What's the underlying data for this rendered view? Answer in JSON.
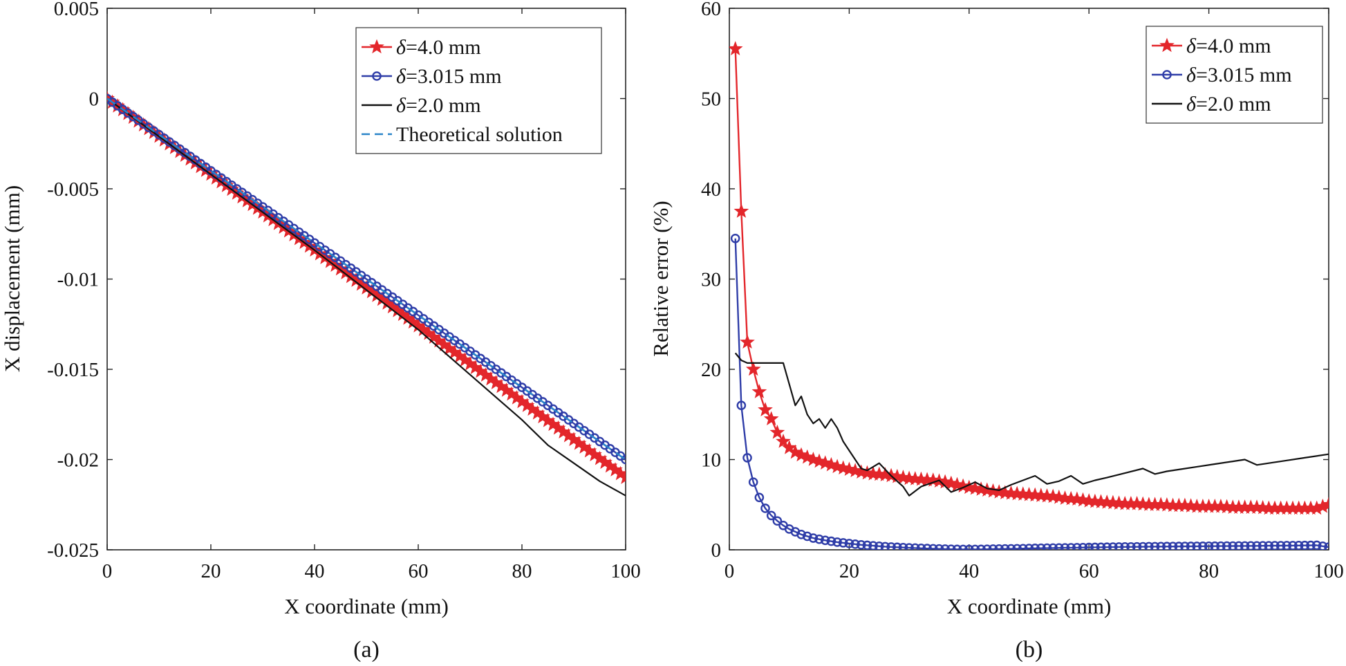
{
  "chart_data": [
    {
      "type": "line",
      "panel_label": "(a)",
      "xlabel": "X coordinate (mm)",
      "ylabel": "X displacement (mm)",
      "xlim": [
        0,
        100
      ],
      "ylim": [
        -0.025,
        0.005
      ],
      "xticks": [
        0,
        20,
        40,
        60,
        80,
        100
      ],
      "xtick_labels": [
        "0",
        "20",
        "40",
        "60",
        "80",
        "100"
      ],
      "yticks": [
        0.005,
        0,
        -0.005,
        -0.01,
        -0.015,
        -0.02,
        -0.025
      ],
      "ytick_labels": [
        "0.005",
        "0",
        "-0.005",
        "-0.01",
        "-0.015",
        "-0.02",
        "-0.025"
      ],
      "grid": false,
      "legend_position": "top-right",
      "colors": {
        "delta4": "#e3262b",
        "delta3": "#2f3da8",
        "delta2": "#111111",
        "theory": "#2a84c8"
      },
      "series": [
        {
          "name": "δ=4.0 mm",
          "color": "#e3262b",
          "marker": "star",
          "x": [
            0,
            10,
            20,
            30,
            40,
            50,
            60,
            70,
            80,
            90,
            100
          ],
          "y": [
            0,
            -0.0021,
            -0.0042,
            -0.0063,
            -0.0084,
            -0.0105,
            -0.0126,
            -0.0147,
            -0.0168,
            -0.0189,
            -0.021
          ]
        },
        {
          "name": "δ=3.015 mm",
          "color": "#2f3da8",
          "marker": "circle",
          "x": [
            0,
            10,
            20,
            30,
            40,
            50,
            60,
            70,
            80,
            90,
            100
          ],
          "y": [
            0,
            -0.002,
            -0.004,
            -0.006,
            -0.008,
            -0.01,
            -0.012,
            -0.014,
            -0.016,
            -0.018,
            -0.02
          ]
        },
        {
          "name": "δ=2.0 mm",
          "color": "#111111",
          "marker": "none",
          "x": [
            0,
            10,
            20,
            30,
            40,
            50,
            60,
            70,
            80,
            85,
            90,
            95,
            100
          ],
          "y": [
            0,
            -0.0021,
            -0.0042,
            -0.0063,
            -0.0084,
            -0.0106,
            -0.0128,
            -0.0153,
            -0.0178,
            -0.0192,
            -0.0202,
            -0.0212,
            -0.022
          ]
        },
        {
          "name": "Theoretical solution",
          "color": "#2a84c8",
          "marker": "none",
          "dashed": true,
          "x": [
            0,
            100
          ],
          "y": [
            0,
            -0.02
          ]
        }
      ]
    },
    {
      "type": "line",
      "panel_label": "(b)",
      "xlabel": "X coordinate (mm)",
      "ylabel": "Relative error (%)",
      "xlim": [
        0,
        100
      ],
      "ylim": [
        0,
        60
      ],
      "xticks": [
        0,
        20,
        40,
        60,
        80,
        100
      ],
      "xtick_labels": [
        "0",
        "20",
        "40",
        "60",
        "80",
        "100"
      ],
      "yticks": [
        0,
        10,
        20,
        30,
        40,
        50,
        60
      ],
      "ytick_labels": [
        "0",
        "10",
        "20",
        "30",
        "40",
        "50",
        "60"
      ],
      "grid": false,
      "legend_position": "top-right",
      "colors": {
        "delta4": "#e3262b",
        "delta3": "#2f3da8",
        "delta2": "#111111"
      },
      "series": [
        {
          "name": "δ=4.0 mm",
          "color": "#e3262b",
          "marker": "star",
          "x": [
            1,
            2,
            3,
            4,
            5,
            6,
            7,
            8,
            9,
            10,
            11,
            12,
            14,
            16,
            18,
            20,
            22,
            24,
            26,
            28,
            30,
            32,
            34,
            36,
            38,
            40,
            42,
            44,
            46,
            48,
            50,
            52,
            54,
            56,
            58,
            60,
            62,
            64,
            66,
            68,
            70,
            72,
            74,
            76,
            78,
            80,
            82,
            84,
            86,
            88,
            90,
            92,
            94,
            96,
            98,
            100
          ],
          "y": [
            55.5,
            37.5,
            23,
            20,
            17.5,
            15.5,
            14.5,
            13,
            12,
            11.3,
            10.8,
            10.5,
            10,
            9.6,
            9.2,
            8.9,
            8.6,
            8.4,
            8.3,
            8.1,
            7.9,
            7.8,
            7.7,
            7.5,
            7.2,
            6.9,
            6.7,
            6.5,
            6.3,
            6.2,
            6.1,
            6,
            5.9,
            5.7,
            5.6,
            5.4,
            5.3,
            5.2,
            5.1,
            5.1,
            5,
            5,
            4.9,
            4.9,
            4.8,
            4.8,
            4.8,
            4.7,
            4.7,
            4.7,
            4.6,
            4.6,
            4.6,
            4.6,
            4.6,
            5
          ]
        },
        {
          "name": "δ=3.015 mm",
          "color": "#2f3da8",
          "marker": "circle",
          "x": [
            1,
            2,
            3,
            4,
            5,
            6,
            7,
            8,
            9,
            10,
            11,
            12,
            14,
            16,
            18,
            20,
            22,
            24,
            26,
            28,
            30,
            32,
            34,
            36,
            38,
            40,
            42,
            44,
            46,
            48,
            50,
            52,
            54,
            56,
            58,
            60,
            62,
            64,
            66,
            68,
            70,
            72,
            74,
            76,
            78,
            80,
            82,
            84,
            86,
            88,
            90,
            92,
            94,
            96,
            98,
            100
          ],
          "y": [
            34.5,
            16,
            10.2,
            7.5,
            5.8,
            4.6,
            3.8,
            3.2,
            2.7,
            2.3,
            2,
            1.7,
            1.3,
            1.05,
            0.85,
            0.7,
            0.55,
            0.45,
            0.35,
            0.28,
            0.22,
            0.17,
            0.12,
            0.08,
            0.05,
            0.04,
            0.05,
            0.08,
            0.1,
            0.12,
            0.15,
            0.18,
            0.2,
            0.22,
            0.24,
            0.26,
            0.28,
            0.3,
            0.32,
            0.33,
            0.35,
            0.36,
            0.37,
            0.38,
            0.39,
            0.4,
            0.41,
            0.42,
            0.43,
            0.44,
            0.45,
            0.46,
            0.47,
            0.48,
            0.5,
            0.3
          ]
        },
        {
          "name": "δ=2.0 mm",
          "color": "#111111",
          "marker": "none",
          "x": [
            1,
            2,
            3,
            5,
            7,
            9,
            11,
            12,
            13,
            14,
            15,
            16,
            17,
            18,
            19,
            20,
            22,
            23,
            25,
            27,
            29,
            30,
            32,
            35,
            37,
            39,
            41,
            43,
            45,
            47,
            49,
            51,
            53,
            55,
            57,
            59,
            61,
            63,
            66,
            69,
            71,
            73,
            75,
            78,
            81,
            84,
            86,
            88,
            90,
            93,
            96,
            100
          ],
          "y": [
            21.8,
            21,
            20.7,
            20.7,
            20.7,
            20.7,
            16,
            17,
            15,
            14,
            14.5,
            13.5,
            14.5,
            13.5,
            12,
            11,
            9,
            8.8,
            9.6,
            8.2,
            7,
            6,
            7,
            7.7,
            6.4,
            6.9,
            7.5,
            6.8,
            6.6,
            7.2,
            7.7,
            8.2,
            7.3,
            7.6,
            8.2,
            7.3,
            7.7,
            8,
            8.5,
            9,
            8.4,
            8.7,
            8.9,
            9.2,
            9.5,
            9.8,
            10,
            9.4,
            9.6,
            9.9,
            10.2,
            10.6
          ]
        }
      ]
    }
  ]
}
